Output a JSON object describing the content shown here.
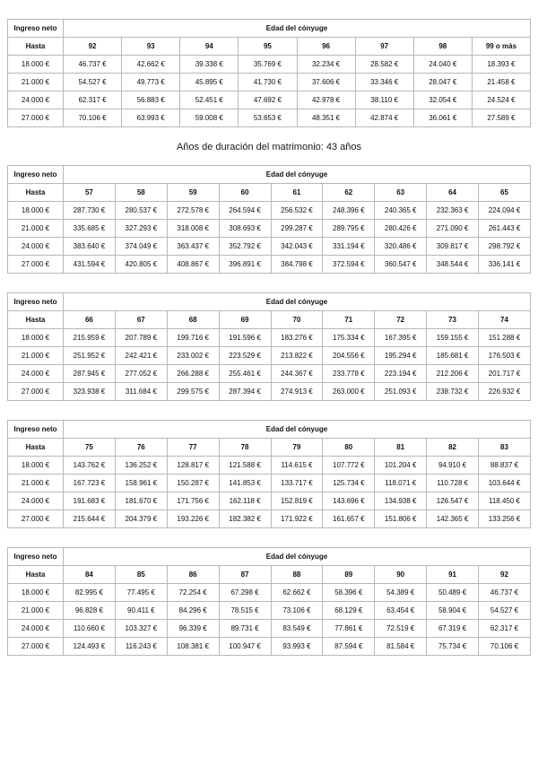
{
  "heading": "Años de duración del matrimonio: 43 años",
  "labels": {
    "income_header": "Ingreso neto",
    "age_group_header": "Edad del cónyuge",
    "hasta": "Hasta"
  },
  "tables": [
    {
      "ages": [
        "92",
        "93",
        "94",
        "95",
        "96",
        "97",
        "98",
        "99 o más"
      ],
      "rows": [
        {
          "income": "18.000 €",
          "values": [
            "46.737 €",
            "42.662 €",
            "39.338 €",
            "35.769 €",
            "32.234 €",
            "28.582 €",
            "24.040 €",
            "18.393 €"
          ]
        },
        {
          "income": "21.000 €",
          "values": [
            "54.527 €",
            "49.773 €",
            "45.895 €",
            "41.730 €",
            "37.606 €",
            "33.346 €",
            "28.047 €",
            "21.458 €"
          ]
        },
        {
          "income": "24.000 €",
          "values": [
            "62.317 €",
            "56.883 €",
            "52.451 €",
            "47.692 €",
            "42.978 €",
            "38.110 €",
            "32.054 €",
            "24.524 €"
          ]
        },
        {
          "income": "27.000 €",
          "values": [
            "70.106 €",
            "63.993 €",
            "59.008 €",
            "53.653 €",
            "48.351 €",
            "42.874 €",
            "36.061 €",
            "27.589 €"
          ]
        }
      ]
    },
    {
      "ages": [
        "57",
        "58",
        "59",
        "60",
        "61",
        "62",
        "63",
        "64",
        "65"
      ],
      "rows": [
        {
          "income": "18.000 €",
          "values": [
            "287.730 €",
            "280.537 €",
            "272.578 €",
            "264.594 €",
            "256.532 €",
            "248.396 €",
            "240.365 €",
            "232.363 €",
            "224.094 €"
          ]
        },
        {
          "income": "21.000 €",
          "values": [
            "335.685 €",
            "327.293 €",
            "318.008 €",
            "308.693 €",
            "299.287 €",
            "289.795 €",
            "280.426 €",
            "271.090 €",
            "261.443 €"
          ]
        },
        {
          "income": "24.000 €",
          "values": [
            "383.640 €",
            "374.049 €",
            "363.437 €",
            "352.792 €",
            "342.043 €",
            "331.194 €",
            "320.486 €",
            "309.817 €",
            "298.792 €"
          ]
        },
        {
          "income": "27.000 €",
          "values": [
            "431.594 €",
            "420.805 €",
            "408.867 €",
            "396.891 €",
            "384.798 €",
            "372.594 €",
            "360.547 €",
            "348.544 €",
            "336.141 €"
          ]
        }
      ]
    },
    {
      "ages": [
        "66",
        "67",
        "68",
        "69",
        "70",
        "71",
        "72",
        "73",
        "74"
      ],
      "rows": [
        {
          "income": "18.000 €",
          "values": [
            "215.959 €",
            "207.789 €",
            "199.716 €",
            "191.596 €",
            "183.276 €",
            "175.334 €",
            "167.395 €",
            "159.155 €",
            "151.288 €"
          ]
        },
        {
          "income": "21.000 €",
          "values": [
            "251.952 €",
            "242.421 €",
            "233.002 €",
            "223.529 €",
            "213.822 €",
            "204.556 €",
            "195.294 €",
            "185.681 €",
            "176.503 €"
          ]
        },
        {
          "income": "24.000 €",
          "values": [
            "287.945 €",
            "277.052 €",
            "266.288 €",
            "255.461 €",
            "244.367 €",
            "233.778 €",
            "223.194 €",
            "212.206 €",
            "201.717 €"
          ]
        },
        {
          "income": "27.000 €",
          "values": [
            "323.938 €",
            "311.684 €",
            "299.575 €",
            "287.394 €",
            "274.913 €",
            "263.000 €",
            "251.093 €",
            "238.732 €",
            "226.932 €"
          ]
        }
      ]
    },
    {
      "ages": [
        "75",
        "76",
        "77",
        "78",
        "79",
        "80",
        "81",
        "82",
        "83"
      ],
      "rows": [
        {
          "income": "18.000 €",
          "values": [
            "143.762 €",
            "136.252 €",
            "128.817 €",
            "121.588 €",
            "114.615 €",
            "107.772 €",
            "101.204 €",
            "94.910 €",
            "88.837 €"
          ]
        },
        {
          "income": "21.000 €",
          "values": [
            "167.723 €",
            "158.961 €",
            "150.287 €",
            "141.853 €",
            "133.717 €",
            "125.734 €",
            "118.071 €",
            "110.728 €",
            "103.644 €"
          ]
        },
        {
          "income": "24.000 €",
          "values": [
            "191.683 €",
            "181.670 €",
            "171.756 €",
            "162.118 €",
            "152.819 €",
            "143.696 €",
            "134.938 €",
            "126.547 €",
            "118.450 €"
          ]
        },
        {
          "income": "27.000 €",
          "values": [
            "215.644 €",
            "204.379 €",
            "193.226 €",
            "182.382 €",
            "171.922 €",
            "161.657 €",
            "151.806 €",
            "142.365 €",
            "133.256 €"
          ]
        }
      ]
    },
    {
      "ages": [
        "84",
        "85",
        "86",
        "87",
        "88",
        "89",
        "90",
        "91",
        "92"
      ],
      "rows": [
        {
          "income": "18.000 €",
          "values": [
            "82.995 €",
            "77.495 €",
            "72.254 €",
            "67.298 €",
            "62.662 €",
            "58.396 €",
            "54.389 €",
            "50.489 €",
            "46.737 €"
          ]
        },
        {
          "income": "21.000 €",
          "values": [
            "96.828 €",
            "90.411 €",
            "84.296 €",
            "78.515 €",
            "73.106 €",
            "68.129 €",
            "63.454 €",
            "58.904 €",
            "54.527 €"
          ]
        },
        {
          "income": "24.000 €",
          "values": [
            "110.660 €",
            "103.327 €",
            "96.339 €",
            "89.731 €",
            "83.549 €",
            "77.861 €",
            "72.519 €",
            "67.319 €",
            "62.317 €"
          ]
        },
        {
          "income": "27.000 €",
          "values": [
            "124.493 €",
            "116.243 €",
            "108.381 €",
            "100.947 €",
            "93.993 €",
            "87.594 €",
            "81.584 €",
            "75.734 €",
            "70.106 €"
          ]
        }
      ]
    }
  ]
}
